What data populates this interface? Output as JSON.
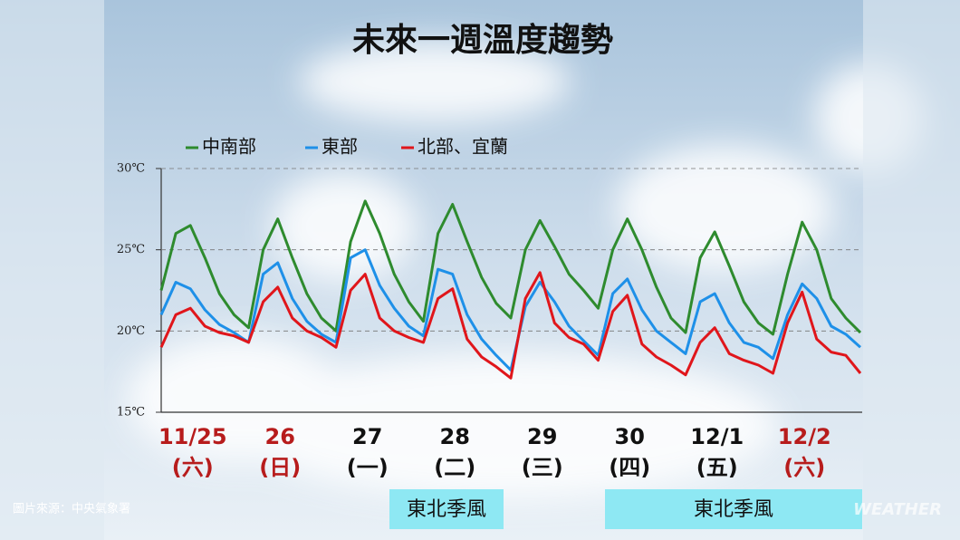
{
  "chart_data": {
    "type": "line",
    "title": "未來一週溫度趨勢",
    "categories": [
      null,
      null,
      null,
      null,
      null,
      null,
      null,
      null,
      null,
      null,
      null,
      null,
      null,
      null,
      null,
      null,
      null,
      null,
      null,
      null,
      null,
      null,
      null,
      null,
      null,
      null,
      null,
      null,
      null,
      null,
      null,
      null,
      null,
      null,
      null,
      null,
      null,
      null,
      null,
      null,
      null,
      null,
      null,
      null,
      null,
      null,
      null,
      null,
      null
    ],
    "series": [
      {
        "name": "中南部",
        "color": "#2e8b2e",
        "values": [
          22.5,
          26,
          26.5,
          24.5,
          22.3,
          21,
          20.2,
          25,
          26.9,
          24.5,
          22.3,
          20.8,
          20,
          25.5,
          28,
          26,
          23.5,
          21.8,
          20.6,
          26,
          27.8,
          25.5,
          23.3,
          21.7,
          20.8,
          25,
          26.8,
          25.2,
          23.5,
          22.5,
          21.4,
          25,
          26.9,
          25,
          22.7,
          20.8,
          19.9,
          24.5,
          26.1,
          24,
          21.8,
          20.5,
          19.8,
          23.5,
          26.7,
          25,
          22,
          20.8,
          19.9
        ]
      },
      {
        "name": "東部",
        "color": "#1e90e8",
        "values": [
          21,
          23,
          22.6,
          21.3,
          20.4,
          19.9,
          19.3,
          23.5,
          24.2,
          22,
          20.6,
          19.8,
          19.3,
          24.5,
          25,
          22.8,
          21.4,
          20.3,
          19.7,
          23.8,
          23.5,
          21,
          19.5,
          18.5,
          17.6,
          21.5,
          23,
          21.8,
          20.3,
          19.4,
          18.5,
          22.3,
          23.2,
          21.3,
          20,
          19.3,
          18.6,
          21.8,
          22.3,
          20.5,
          19.3,
          19,
          18.3,
          21,
          22.9,
          22,
          20.3,
          19.8,
          19
        ]
      },
      {
        "name": "北部、宜蘭",
        "color": "#e0161b",
        "values": [
          19,
          21,
          21.4,
          20.3,
          19.9,
          19.7,
          19.3,
          21.8,
          22.7,
          20.8,
          20,
          19.6,
          19,
          22.5,
          23.5,
          20.8,
          20,
          19.6,
          19.3,
          22,
          22.6,
          19.5,
          18.4,
          17.8,
          17.1,
          22,
          23.6,
          20.5,
          19.6,
          19.2,
          18.2,
          21.2,
          22.2,
          19.2,
          18.4,
          17.9,
          17.3,
          19.3,
          20.2,
          18.6,
          18.2,
          17.9,
          17.4,
          20.5,
          22.4,
          19.5,
          18.7,
          18.5,
          17.4
        ]
      }
    ],
    "ylim": [
      15,
      30
    ],
    "yticks": [
      {
        "value": 15,
        "label": "15℃"
      },
      {
        "value": 20,
        "label": "20℃"
      },
      {
        "value": 25,
        "label": "25℃"
      },
      {
        "value": 30,
        "label": "30℃"
      }
    ],
    "grid": true,
    "day_labels": [
      {
        "date": "11/25",
        "weekday": "(六)",
        "color": "#b71c1c"
      },
      {
        "date": "26",
        "weekday": "(日)",
        "color": "#b71c1c"
      },
      {
        "date": "27",
        "weekday": "(一)",
        "color": "#111111"
      },
      {
        "date": "28",
        "weekday": "(二)",
        "color": "#111111"
      },
      {
        "date": "29",
        "weekday": "(三)",
        "color": "#111111"
      },
      {
        "date": "30",
        "weekday": "(四)",
        "color": "#111111"
      },
      {
        "date": "12/1",
        "weekday": "(五)",
        "color": "#111111"
      },
      {
        "date": "12/2",
        "weekday": "(六)",
        "color": "#b71c1c"
      }
    ],
    "annotations": [
      "東北季風",
      "東北季風"
    ],
    "source": "圖片來源：中央氣象署",
    "watermark": "WEATHER"
  }
}
